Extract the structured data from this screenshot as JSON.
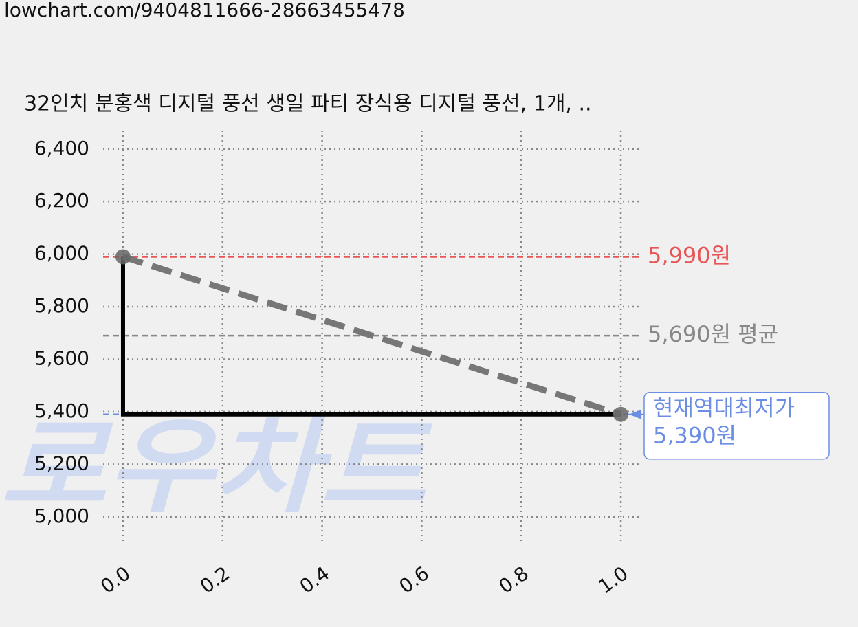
{
  "url": "lowchart.com/9404811666-28663455478",
  "chart_data": {
    "type": "line",
    "title": "32인치 분홍색 디지털 풍선 생일 파티 장식용 디지털 풍선, 1개, ..",
    "watermark": "로우차트",
    "x": [
      0,
      1
    ],
    "series": [
      {
        "color": "#000000",
        "style": "step-pre",
        "values": [
          5990,
          5390
        ]
      },
      {
        "color": "#777777",
        "style": "dashed",
        "values": [
          5990,
          5390
        ]
      }
    ],
    "marker_color": "#666666",
    "xlim": [
      -0.04,
      1.04
    ],
    "ylim": [
      4900,
      6470
    ],
    "xticks": [
      {
        "value": 0,
        "label": "0.0"
      },
      0.2,
      0.4,
      0.6,
      0.8,
      {
        "value": 1,
        "label": "1.0"
      }
    ],
    "yticks": [
      {
        "value": 5000,
        "label": "5,000"
      },
      {
        "value": 5200,
        "label": "5,200"
      },
      {
        "value": 5400,
        "label": "5,400"
      },
      {
        "value": 5600,
        "label": "5,600"
      },
      {
        "value": 5800,
        "label": "5,800"
      },
      {
        "value": 6000,
        "label": "6,000"
      },
      {
        "value": 6200,
        "label": "6,200"
      },
      {
        "value": 6400,
        "label": "6,400"
      }
    ],
    "grid": true,
    "reference_lines": [
      {
        "value": 5990,
        "color": "#e85555",
        "label": [
          "5,990원"
        ]
      },
      {
        "value": 5690,
        "color": "#888888",
        "label": [
          "5,690원 평균"
        ]
      },
      {
        "value": 5390,
        "color": "#6b8de3",
        "label": [
          "현재역대최저가",
          "5,390원"
        ],
        "boxed": true
      }
    ]
  }
}
